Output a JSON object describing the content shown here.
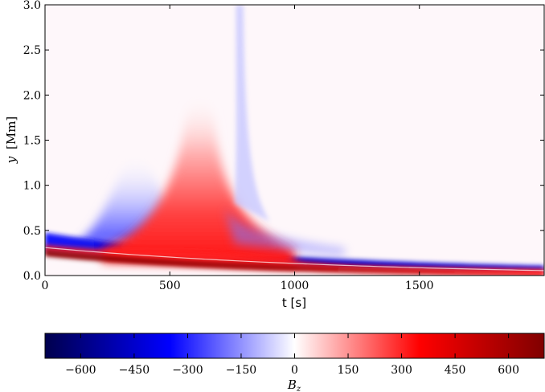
{
  "chart_data": {
    "type": "heatmap",
    "title": "",
    "xlabel": "t [s]",
    "ylabel_var": "y",
    "ylabel_unit": "[Mm]",
    "xlim": [
      0,
      2000
    ],
    "ylim": [
      0,
      3.0
    ],
    "x_ticks": [
      0,
      500,
      1000,
      1500
    ],
    "x_tick_labels": [
      "0",
      "500",
      "1000",
      "1500"
    ],
    "y_ticks": [
      0.0,
      0.5,
      1.0,
      1.5,
      2.0,
      2.5,
      3.0
    ],
    "y_tick_labels": [
      "0.0",
      "0.5",
      "1.0",
      "1.5",
      "2.0",
      "2.5",
      "3.0"
    ],
    "grid": false,
    "colorbar": {
      "label_var": "B",
      "label_sub": "z",
      "range": [
        -700,
        700
      ],
      "ticks": [
        -600,
        -450,
        -300,
        -150,
        0,
        150,
        300,
        450,
        600
      ],
      "tick_labels": [
        "−600",
        "−450",
        "−300",
        "−150",
        "0",
        "150",
        "300",
        "450",
        "600"
      ],
      "colormap": "seismic",
      "color_stops": [
        "#00004d",
        "#0000ff",
        "#ffffff",
        "#ff0000",
        "#800000"
      ]
    },
    "features": [
      {
        "name": "negative band",
        "sign": "negative",
        "t_range": [
          0,
          2000
        ],
        "y_at_start": 0.32,
        "y_at_end": 0.06,
        "peak_abs": 450
      },
      {
        "name": "strong positive band",
        "sign": "positive",
        "t_range": [
          0,
          2000
        ],
        "y_at_start": 0.26,
        "y_at_end": 0.0,
        "peak_abs": 650
      },
      {
        "name": "positive plume",
        "sign": "positive",
        "t_center": 620,
        "y_top": 2.1,
        "peak_abs": 300
      },
      {
        "name": "negative plume",
        "sign": "negative",
        "t_center": 360,
        "y_top": 1.35,
        "peak_abs": 120
      },
      {
        "name": "negative spike",
        "sign": "negative",
        "t_center": 780,
        "y_top": 3.0,
        "peak_abs": 60
      }
    ]
  }
}
